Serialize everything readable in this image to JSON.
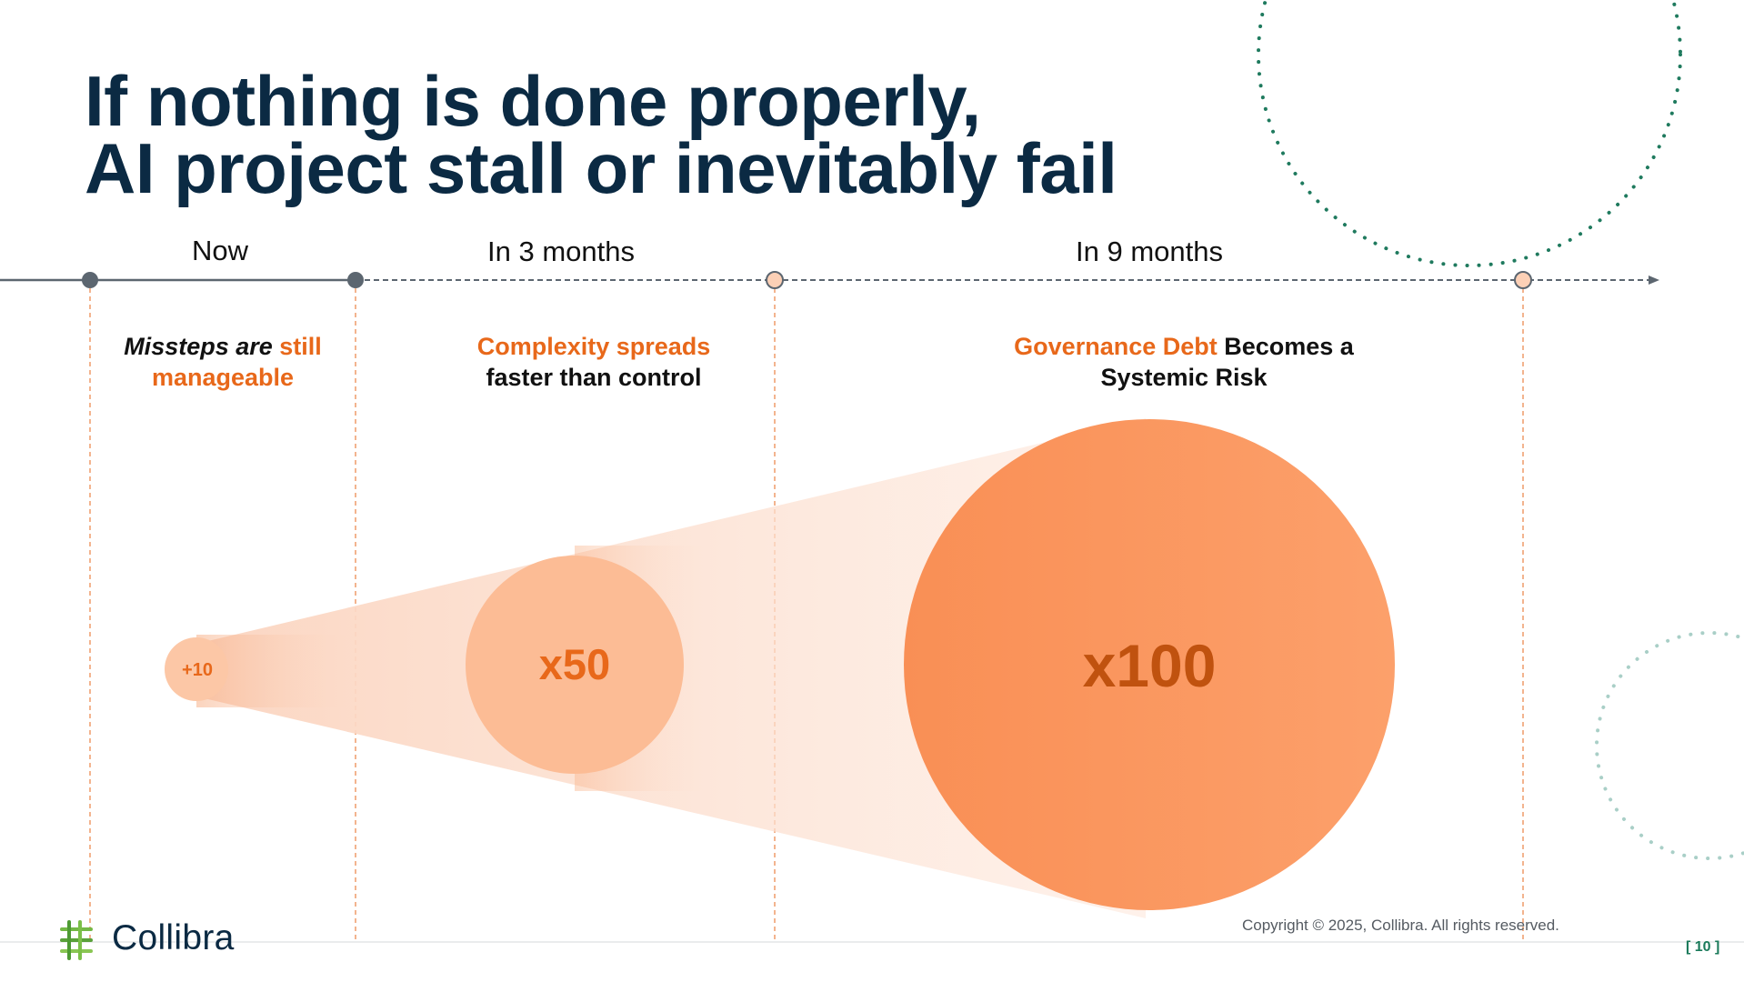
{
  "slide": {
    "title_lines": [
      "If nothing is done properly,",
      "AI project stall or inevitably fail"
    ],
    "copyright": "Copyright © 2025, Collibra. All rights reserved.",
    "page_number": "[ 10 ]",
    "logo_text": "Collibra"
  },
  "timeline": {
    "periods": [
      "Now",
      "In 3 months",
      "In 9 months"
    ]
  },
  "stages": [
    {
      "parts": [
        {
          "text": "Missteps are ",
          "style": "italic"
        },
        {
          "text": "still",
          "style": "orange"
        }
      ],
      "line2": [
        {
          "text": "manageable",
          "style": "orange"
        }
      ]
    },
    {
      "parts": [
        {
          "text": "Complexity spreads",
          "style": "orange"
        }
      ],
      "line2": [
        {
          "text": "faster than control",
          "style": ""
        }
      ]
    },
    {
      "parts": [
        {
          "text": "Governance Debt",
          "style": "orange"
        },
        {
          "text": " Becomes a",
          "style": ""
        }
      ],
      "line2": [
        {
          "text": "Systemic Risk",
          "style": ""
        }
      ]
    }
  ],
  "growth": [
    {
      "label": "+10"
    },
    {
      "label": "x50"
    },
    {
      "label": "x100"
    }
  ],
  "colors": {
    "title": "#0b2a43",
    "accent_orange": "#e8681a",
    "circle_small": "#fcc7a6",
    "circle_mid": "#fcbc95",
    "circle_big": "#f98f55",
    "dot_green": "#1f7a5e",
    "dot_light": "#a9cfc7"
  }
}
